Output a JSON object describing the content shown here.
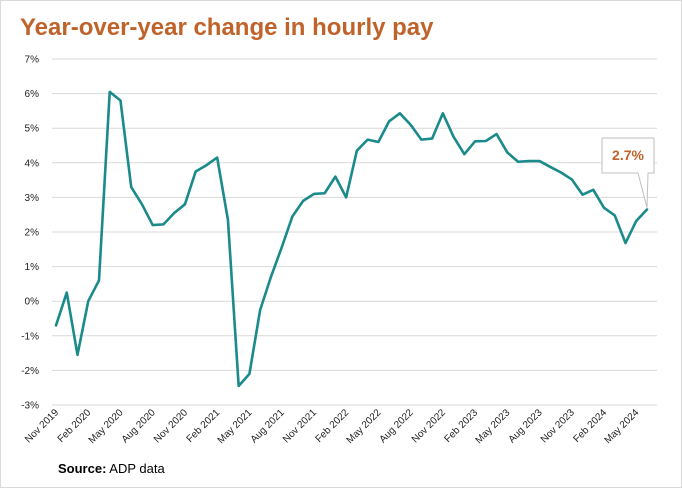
{
  "title": "Year-over-year change in hourly pay",
  "source": {
    "prefix": "Source:",
    "text": " ADP data"
  },
  "colors": {
    "title": "#c0632b",
    "line": "#1a8a8a",
    "callout": "#c0632b"
  },
  "chart_data": {
    "type": "line",
    "title": "Year-over-year change in hourly pay",
    "xlabel": "",
    "ylabel": "",
    "ylim": [
      -3,
      7
    ],
    "grid": true,
    "y_ticks": [
      "-3%",
      "-2%",
      "-1%",
      "0%",
      "1%",
      "2%",
      "3%",
      "4%",
      "5%",
      "6%",
      "7%"
    ],
    "x_tick_labels": [
      "Nov 2019",
      "Feb 2020",
      "May 2020",
      "Aug 2020",
      "Nov 2020",
      "Feb 2021",
      "May 2021",
      "Aug 2021",
      "Nov 2021",
      "Feb 2022",
      "May 2022",
      "Aug 2022",
      "Nov 2022",
      "Feb 2023",
      "May 2023",
      "Aug 2023",
      "Nov 2023",
      "Feb 2024",
      "May 2024"
    ],
    "x": [
      "Nov 2019",
      "Dec 2019",
      "Jan 2020",
      "Feb 2020",
      "Mar 2020",
      "Apr 2020",
      "May 2020",
      "Jun 2020",
      "Jul 2020",
      "Aug 2020",
      "Sep 2020",
      "Oct 2020",
      "Nov 2020",
      "Dec 2020",
      "Jan 2021",
      "Feb 2021",
      "Mar 2021",
      "Apr 2021",
      "May 2021",
      "Jun 2021",
      "Jul 2021",
      "Aug 2021",
      "Sep 2021",
      "Oct 2021",
      "Nov 2021",
      "Dec 2021",
      "Jan 2022",
      "Feb 2022",
      "Mar 2022",
      "Apr 2022",
      "May 2022",
      "Jun 2022",
      "Jul 2022",
      "Aug 2022",
      "Sep 2022",
      "Oct 2022",
      "Nov 2022",
      "Dec 2022",
      "Jan 2023",
      "Feb 2023",
      "Mar 2023",
      "Apr 2023",
      "May 2023",
      "Jun 2023",
      "Jul 2023",
      "Aug 2023",
      "Sep 2023",
      "Oct 2023",
      "Nov 2023",
      "Dec 2023",
      "Jan 2024",
      "Feb 2024",
      "Mar 2024",
      "Apr 2024",
      "May 2024",
      "Jun 2024"
    ],
    "series": [
      {
        "values": [
          -0.7,
          0.25,
          -1.55,
          0.0,
          0.6,
          6.05,
          5.8,
          3.3,
          2.8,
          2.2,
          2.22,
          2.55,
          2.8,
          3.75,
          3.93,
          4.15,
          2.35,
          -2.45,
          -2.1,
          -0.25,
          0.7,
          1.55,
          2.45,
          2.9,
          3.1,
          3.12,
          3.6,
          3.0,
          4.35,
          4.67,
          4.6,
          5.2,
          5.43,
          5.1,
          4.67,
          4.7,
          5.43,
          4.75,
          4.25,
          4.62,
          4.63,
          4.83,
          4.3,
          4.03,
          4.05,
          4.05,
          3.88,
          3.72,
          3.52,
          3.08,
          3.22,
          2.7,
          2.48,
          1.68,
          2.32,
          2.65
        ]
      }
    ],
    "annotation": {
      "label": "2.7%",
      "value": 2.7,
      "point": "Jun 2024"
    }
  }
}
